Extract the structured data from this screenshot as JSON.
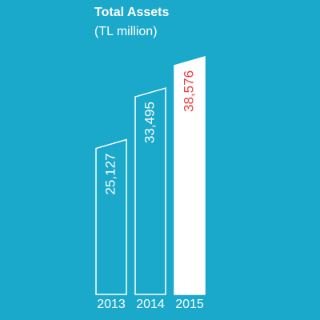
{
  "chart_data": {
    "type": "bar",
    "title": "Total Assets",
    "subtitle": "(TL million)",
    "categories": [
      "2013",
      "2014",
      "2015"
    ],
    "values": [
      25127,
      33495,
      38576
    ],
    "value_labels": [
      "25,127",
      "33,495",
      "38,576"
    ],
    "colors": [
      "none",
      "none",
      "#ffffff"
    ],
    "outline_color": "#ffffff",
    "value_label_colors": [
      "#ffffff",
      "#ffffff",
      "#e8413f"
    ],
    "background": "#1aa8cb"
  }
}
